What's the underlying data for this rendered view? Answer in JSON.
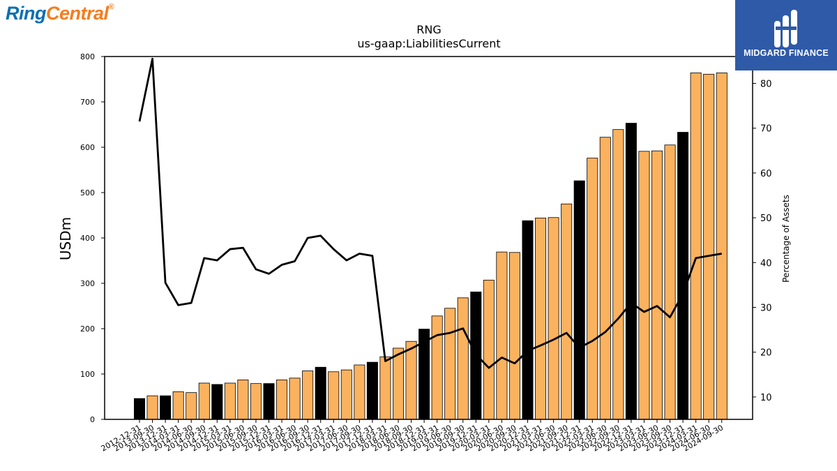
{
  "branding": {
    "left_logo_text_a": "Ring",
    "left_logo_text_b": "Central",
    "left_logo_mark": "®",
    "right_logo_text": "MIDGARD FINANCE",
    "colors": {
      "ring_blue": "#0a6fb4",
      "central_orange": "#f47d20",
      "midgard_blue": "#2e5aa8"
    }
  },
  "chart_data": {
    "type": "bar",
    "title": "RNG",
    "subtitle": "us-gaap:LiabilitiesCurrent",
    "ylabel": "USDm",
    "y2label": "Percentage of Assets",
    "ylim": [
      0,
      800
    ],
    "y2lim": [
      5,
      86
    ],
    "yticks": [
      0,
      100,
      200,
      300,
      400,
      500,
      600,
      700,
      800
    ],
    "y2ticks": [
      10,
      20,
      30,
      40,
      50,
      60,
      70,
      80
    ],
    "colors": {
      "quarter_bar": "#fbb25f",
      "annual_bar": "#000000",
      "line": "#000000"
    },
    "categories": [
      "2012-12-31",
      "2013-09-30",
      "2013-12-31",
      "2014-03-31",
      "2014-06-30",
      "2014-09-30",
      "2014-12-31",
      "2015-03-31",
      "2015-06-30",
      "2015-09-30",
      "2015-12-31",
      "2016-03-31",
      "2016-06-30",
      "2016-09-30",
      "2016-12-31",
      "2017-03-31",
      "2017-06-30",
      "2017-09-30",
      "2017-12-31",
      "2018-03-31",
      "2018-06-30",
      "2018-09-30",
      "2018-12-31",
      "2019-03-31",
      "2019-06-30",
      "2019-09-30",
      "2019-12-31",
      "2020-03-31",
      "2020-06-30",
      "2020-09-30",
      "2020-12-31",
      "2021-03-31",
      "2021-06-30",
      "2021-09-30",
      "2021-12-31",
      "2022-03-31",
      "2022-06-30",
      "2022-09-30",
      "2022-12-31",
      "2023-03-31",
      "2023-06-30",
      "2023-09-30",
      "2023-12-31",
      "2024-03-31",
      "2024-06-30",
      "2024-09-30"
    ],
    "series": [
      {
        "values": [
          46,
          52,
          52,
          61,
          59,
          80,
          77,
          80,
          87,
          79,
          79,
          87,
          91,
          107,
          115,
          105,
          109,
          120,
          126,
          138,
          157,
          172,
          199,
          228,
          245,
          268,
          281,
          307,
          369,
          368,
          438,
          444,
          445,
          475,
          526,
          576,
          622,
          639,
          653,
          591,
          592,
          605,
          633,
          764,
          761,
          764
        ]
      },
      {
        "values": [
          71.5,
          85.5,
          35.5,
          30.5,
          31,
          41,
          40.5,
          43,
          43.3,
          38.5,
          37.5,
          39.5,
          40.3,
          45.5,
          46,
          43,
          40.5,
          42,
          41.5,
          18,
          19.5,
          20.8,
          22.3,
          23.8,
          24.3,
          25.3,
          19.5,
          16.5,
          18.8,
          17.5,
          20.3,
          21.5,
          22.8,
          24.3,
          21,
          22.5,
          24.5,
          27.5,
          31,
          29,
          30.3,
          27.8,
          33,
          41,
          41.5,
          42
        ]
      }
    ],
    "annual_flags": [
      1,
      0,
      1,
      0,
      0,
      0,
      1,
      0,
      0,
      0,
      1,
      0,
      0,
      0,
      1,
      0,
      0,
      0,
      1,
      0,
      0,
      0,
      1,
      0,
      0,
      0,
      1,
      0,
      0,
      0,
      1,
      0,
      0,
      0,
      1,
      0,
      0,
      0,
      1,
      0,
      0,
      0,
      1,
      0,
      0,
      0
    ]
  }
}
